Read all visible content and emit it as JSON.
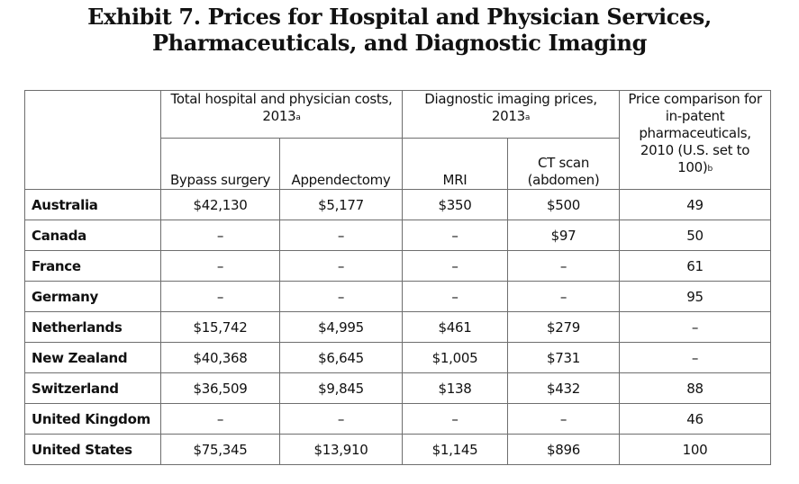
{
  "title": {
    "line1": "Exhibit 7. Prices for Hospital and Physician Services,",
    "line2": "Pharmaceuticals, and Diagnostic Imaging"
  },
  "table": {
    "group_headers": {
      "hospital": "Total hospital and physician costs, 2013",
      "hospital_note": "a",
      "imaging": "Diagnostic imaging prices, 2013",
      "imaging_note": "a",
      "pharma": "Price comparison for in-patent pharmaceuticals, 2010 (U.S. set to 100)",
      "pharma_note": "b"
    },
    "sub_headers": [
      "Bypass surgery",
      "Appendectomy",
      "MRI",
      "CT scan (abdomen)"
    ],
    "rows": [
      {
        "country": "Australia",
        "values": [
          "$42,130",
          "$5,177",
          "$350",
          "$500",
          "49"
        ]
      },
      {
        "country": "Canada",
        "values": [
          "–",
          "–",
          "–",
          "$97",
          "50"
        ]
      },
      {
        "country": "France",
        "values": [
          "–",
          "–",
          "–",
          "–",
          "61"
        ]
      },
      {
        "country": "Germany",
        "values": [
          "–",
          "–",
          "–",
          "–",
          "95"
        ]
      },
      {
        "country": "Netherlands",
        "values": [
          "$15,742",
          "$4,995",
          "$461",
          "$279",
          "–"
        ]
      },
      {
        "country": "New Zealand",
        "values": [
          "$40,368",
          "$6,645",
          "$1,005",
          "$731",
          "–"
        ]
      },
      {
        "country": "Switzerland",
        "values": [
          "$36,509",
          "$9,845",
          "$138",
          "$432",
          "88"
        ]
      },
      {
        "country": "United Kingdom",
        "values": [
          "–",
          "–",
          "–",
          "–",
          "46"
        ]
      },
      {
        "country": "United States",
        "values": [
          "$75,345",
          "$13,910",
          "$1,145",
          "$896",
          "100"
        ]
      }
    ]
  }
}
